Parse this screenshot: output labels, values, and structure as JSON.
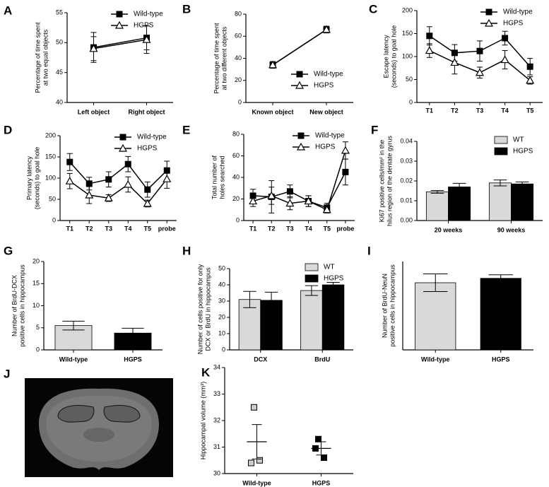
{
  "chart_data": [
    {
      "type": "line",
      "label": "A",
      "ylabel": [
        "Percentage of time spent",
        "at two equal objects"
      ],
      "categories": [
        "Left object",
        "Right object"
      ],
      "ylim": [
        40,
        55
      ],
      "yticks": [
        40,
        45,
        50,
        55
      ],
      "legend": "top-right",
      "series": [
        {
          "name": "Wild-type",
          "color": "#000000",
          "marker": "square",
          "values": [
            49.2,
            50.8
          ],
          "errors": [
            2.5,
            2.0
          ]
        },
        {
          "name": "HGPS",
          "color": "#000000",
          "marker": "triangle",
          "values": [
            49.0,
            50.5
          ],
          "errors": [
            2.0,
            2.3
          ]
        }
      ]
    },
    {
      "type": "line",
      "label": "B",
      "ylabel": [
        "Percentage of time spent",
        "at two different objects"
      ],
      "categories": [
        "Known object",
        "New object"
      ],
      "ylim": [
        0,
        80
      ],
      "yticks": [
        0,
        20,
        40,
        60,
        80
      ],
      "legend": "bottom-right",
      "series": [
        {
          "name": "Wild-type",
          "color": "#000000",
          "marker": "square",
          "values": [
            34,
            66
          ],
          "errors": [
            3,
            3
          ]
        },
        {
          "name": "HGPS",
          "color": "#000000",
          "marker": "triangle",
          "values": [
            34,
            66
          ],
          "errors": [
            3,
            3
          ]
        }
      ]
    },
    {
      "type": "line",
      "label": "C",
      "ylabel": [
        "Escape latency",
        "(seconds) to goal hole"
      ],
      "categories": [
        "T1",
        "T2",
        "T3",
        "T4",
        "T5"
      ],
      "ylim": [
        0,
        200
      ],
      "yticks": [
        0,
        50,
        100,
        150,
        200
      ],
      "legend": "top-right",
      "series": [
        {
          "name": "Wild-type",
          "color": "#000000",
          "marker": "square",
          "values": [
            145,
            108,
            112,
            140,
            78
          ],
          "errors": [
            20,
            18,
            22,
            15,
            18
          ]
        },
        {
          "name": "HGPS",
          "color": "#000000",
          "marker": "triangle",
          "values": [
            113,
            87,
            65,
            93,
            48
          ],
          "errors": [
            15,
            25,
            12,
            20,
            8
          ]
        }
      ]
    },
    {
      "type": "line",
      "label": "D",
      "ylabel": [
        "Primary latency",
        "(seconds) to goal hole"
      ],
      "categories": [
        "T1",
        "T2",
        "T3",
        "T4",
        "T5",
        "probe"
      ],
      "ylim": [
        0,
        200
      ],
      "yticks": [
        0,
        50,
        100,
        150,
        200
      ],
      "legend": "top-right",
      "series": [
        {
          "name": "Wild-type",
          "color": "#000000",
          "marker": "square",
          "values": [
            138,
            87,
            97,
            133,
            73,
            118
          ],
          "errors": [
            20,
            15,
            18,
            18,
            18,
            22
          ]
        },
        {
          "name": "HGPS",
          "color": "#000000",
          "marker": "triangle",
          "values": [
            93,
            60,
            53,
            85,
            40,
            98
          ],
          "errors": [
            18,
            20,
            8,
            18,
            8,
            22
          ]
        }
      ]
    },
    {
      "type": "line",
      "label": "E",
      "ylabel": [
        "Total number of",
        "holes searched"
      ],
      "categories": [
        "T1",
        "T2",
        "T3",
        "T4",
        "T5",
        "probe"
      ],
      "ylim": [
        0,
        80
      ],
      "yticks": [
        0,
        20,
        40,
        60,
        80
      ],
      "legend": "top-right",
      "series": [
        {
          "name": "Wild-type",
          "color": "#000000",
          "marker": "square",
          "values": [
            23,
            22,
            27,
            18,
            12,
            45
          ],
          "errors": [
            6,
            15,
            6,
            5,
            4,
            12
          ]
        },
        {
          "name": "HGPS",
          "color": "#000000",
          "marker": "triangle",
          "values": [
            18,
            23,
            16,
            18,
            10,
            65
          ],
          "errors": [
            5,
            8,
            6,
            5,
            3,
            8
          ]
        }
      ]
    },
    {
      "type": "bar",
      "label": "F",
      "ylabel": [
        "Ki67 positive cells/mm² in the",
        "hilus region of the dentate gyrus"
      ],
      "categories": [
        "20 weeks",
        "90 weeks"
      ],
      "ylim": [
        0,
        0.04
      ],
      "yticks": [
        {
          "value": 0,
          "label": "0.00"
        },
        0.01,
        0.02,
        0.03,
        0.04
      ],
      "legend": "top-right",
      "series": [
        {
          "name": "WT",
          "color": "#d9d9d9",
          "values": [
            0.0145,
            0.019
          ],
          "errors": [
            0.0007,
            0.0015
          ]
        },
        {
          "name": "HGPS",
          "color": "#000000",
          "values": [
            0.017,
            0.0185
          ],
          "errors": [
            0.0018,
            0.001
          ]
        }
      ]
    },
    {
      "type": "bar",
      "label": "G",
      "ylabel": [
        "Number of BrdU-DCX",
        "positive cells in hippocampus"
      ],
      "categories": [
        "Wild-type",
        "HGPS"
      ],
      "ylim": [
        0,
        20
      ],
      "yticks": [
        0,
        5,
        10,
        15,
        20
      ],
      "colors": [
        "#d9d9d9",
        "#000000"
      ],
      "values": [
        5.5,
        3.8
      ],
      "errors": [
        1.0,
        1.1
      ]
    },
    {
      "type": "bar",
      "label": "H",
      "ylabel": [
        "Number of cells positive for only",
        "DCX or BrdU in hippocampus"
      ],
      "categories": [
        "DCX",
        "BrdU"
      ],
      "ylim": [
        0,
        50
      ],
      "yticks": [
        0,
        10,
        20,
        30,
        40,
        50
      ],
      "legend": "top-right",
      "series": [
        {
          "name": "WT",
          "color": "#d9d9d9",
          "values": [
            31,
            36.5
          ],
          "errors": [
            5,
            3
          ]
        },
        {
          "name": "HGPS",
          "color": "#000000",
          "values": [
            30.5,
            40
          ],
          "errors": [
            5,
            1.5
          ]
        }
      ]
    },
    {
      "type": "bar",
      "label": "I",
      "ylabel": [
        "Number of BrdU-NeuN",
        "positive cells in hippocampus"
      ],
      "categories": [
        "Wild-type",
        "HGPS"
      ],
      "ylim": [
        0,
        20
      ],
      "colors": [
        "#d9d9d9",
        "#000000"
      ],
      "values": [
        15.2,
        16.2
      ],
      "errors": [
        2.0,
        0.8
      ]
    },
    {
      "type": "image",
      "label": "J"
    },
    {
      "type": "dot",
      "label": "K",
      "ylabel": [
        "Hippocampal volume (mm³)"
      ],
      "categories": [
        "Wild-type",
        "HGPS"
      ],
      "ylim": [
        30,
        34
      ],
      "yticks": [
        30,
        31,
        32,
        33,
        34
      ],
      "colors": [
        "#cccccc",
        "#000000"
      ],
      "points": [
        [
          32.5,
          30.4,
          30.5
        ],
        [
          31.3,
          30.95,
          30.6
        ]
      ],
      "means": [
        31.2,
        30.95
      ],
      "errors": [
        0.65,
        0.25
      ]
    }
  ]
}
